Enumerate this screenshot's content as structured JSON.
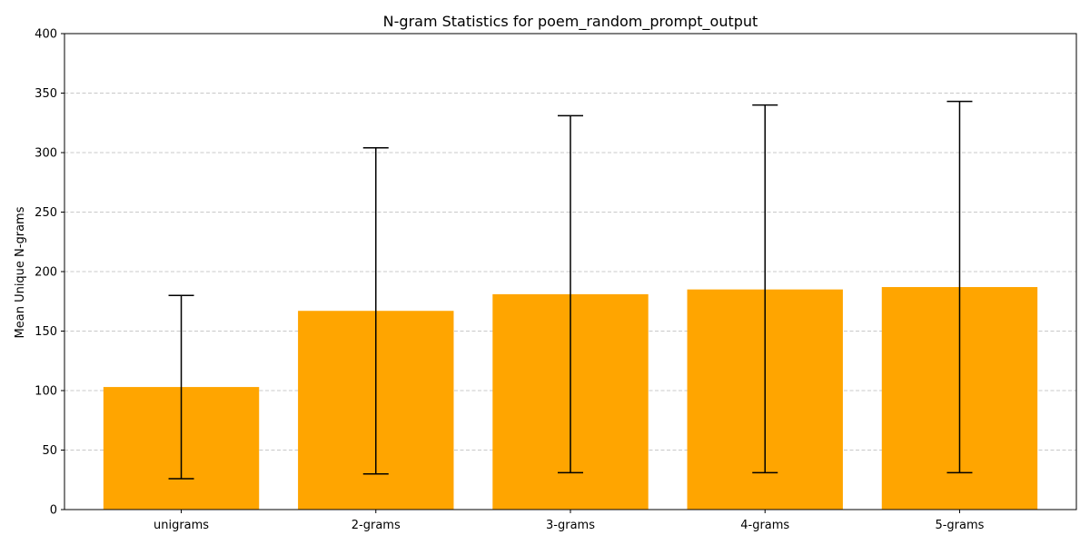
{
  "chart_data": {
    "type": "bar",
    "title": "N-gram Statistics for poem_random_prompt_output",
    "xlabel": "",
    "ylabel": "Mean Unique N-grams",
    "categories": [
      "unigrams",
      "2-grams",
      "3-grams",
      "4-grams",
      "5-grams"
    ],
    "values": [
      103,
      167,
      181,
      185,
      187
    ],
    "error_bars": [
      {
        "low": 26,
        "high": 180
      },
      {
        "low": 30,
        "high": 304
      },
      {
        "low": 31,
        "high": 331
      },
      {
        "low": 31,
        "high": 340
      },
      {
        "low": 31,
        "high": 343
      }
    ],
    "ylim": [
      0,
      400
    ],
    "yticks": [
      0,
      50,
      100,
      150,
      200,
      250,
      300,
      350,
      400
    ],
    "grid": "y-dashed",
    "bar_color": "#ffa500",
    "grid_color": "#c8c8c8"
  }
}
